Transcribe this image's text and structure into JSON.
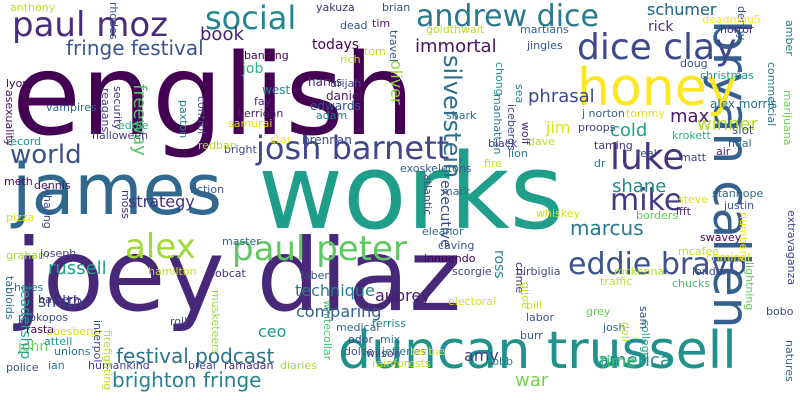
{
  "words": [
    {
      "text": "english",
      "color": "#440154"
    },
    {
      "text": "works",
      "color": "#1f9e89"
    },
    {
      "text": "joey diaz",
      "color": "#482878"
    },
    {
      "text": "james",
      "color": "#31688e"
    },
    {
      "text": "duncan trussell",
      "color": "#21918c"
    },
    {
      "text": "bryan callen",
      "color": "#355f8d"
    },
    {
      "text": "honey",
      "color": "#fde725"
    },
    {
      "text": "paul moz",
      "color": "#472d7b"
    },
    {
      "text": "dice clay",
      "color": "#3e4989"
    },
    {
      "text": "josh barnett",
      "color": "#404688"
    },
    {
      "text": "andrew dice",
      "color": "#2a788e"
    },
    {
      "text": "social",
      "color": "#25858e"
    },
    {
      "text": "paul peter",
      "color": "#5ec962"
    },
    {
      "text": "alex",
      "color": "#a0da39"
    },
    {
      "text": "eddie bravo",
      "color": "#3b528b"
    },
    {
      "text": "luke",
      "color": "#46337e"
    },
    {
      "text": "mike",
      "color": "#443983"
    },
    {
      "text": "world",
      "color": "#3b528b"
    },
    {
      "text": "brighton fringe",
      "color": "#26828e"
    },
    {
      "text": "festival podcast",
      "color": "#2c728e"
    },
    {
      "text": "fringe festival",
      "color": "#39568c"
    },
    {
      "text": "marcus",
      "color": "#2a788e"
    },
    {
      "text": "shane",
      "color": "#23898e"
    },
    {
      "text": "max",
      "color": "#48186a"
    },
    {
      "text": "cold",
      "color": "#20a486"
    },
    {
      "text": "book",
      "color": "#482173"
    },
    {
      "text": "silverstein",
      "color": "#2d708e"
    },
    {
      "text": "russell",
      "color": "#1fa088"
    },
    {
      "text": "technique",
      "color": "#287c8e"
    },
    {
      "text": "comparing",
      "color": "#365d8d"
    },
    {
      "text": "strategy",
      "color": "#472f7d"
    },
    {
      "text": "smith",
      "color": "#3f4788"
    },
    {
      "text": "ceo",
      "color": "#1f968b"
    },
    {
      "text": "america",
      "color": "#228c8d"
    },
    {
      "text": "time",
      "color": "#38b977"
    },
    {
      "text": "war",
      "color": "#7ad151"
    },
    {
      "text": "amy",
      "color": "#433e85"
    },
    {
      "text": "immortal",
      "color": "#471365"
    },
    {
      "text": "phrasal",
      "color": "#3f4889"
    },
    {
      "text": "aubrey",
      "color": "#481f70"
    },
    {
      "text": "todays",
      "color": "#450457"
    },
    {
      "text": "rick",
      "color": "#46307e"
    },
    {
      "text": "schumer",
      "color": "#2d708e"
    },
    {
      "text": "winner",
      "color": "#b5de2b"
    },
    {
      "text": "freeway",
      "color": "#52c569"
    },
    {
      "text": "oliver",
      "color": "#8fd744"
    },
    {
      "text": "ross",
      "color": "#27808e"
    },
    {
      "text": "jim",
      "color": "#d8e219"
    },
    {
      "text": "executive",
      "color": "#3e4a89"
    },
    {
      "text": "john",
      "color": "#6ccd5a"
    },
    {
      "text": "leadership",
      "color": "#20a386"
    },
    {
      "text": "job",
      "color": "#2db27d"
    },
    {
      "text": "harris",
      "color": "#472a7a"
    },
    {
      "text": "edwards",
      "color": "#3b528b"
    },
    {
      "text": "daniel",
      "color": "#481b6d"
    },
    {
      "text": "west",
      "color": "#25848e"
    },
    {
      "text": "brennan",
      "color": "#3e4c8a"
    },
    {
      "text": "dennis",
      "color": "#471063"
    },
    {
      "text": "vampires",
      "color": "#33638d"
    },
    {
      "text": "lyon",
      "color": "#46085c"
    },
    {
      "text": "banning",
      "color": "#440154"
    },
    {
      "text": "fay",
      "color": "#472c7a"
    },
    {
      "text": "alex morris",
      "color": "#2c728e"
    },
    {
      "text": "christmas",
      "color": "#1e9b8a"
    },
    {
      "text": "slot",
      "color": "#3a538b"
    },
    {
      "text": "neal",
      "color": "#31678e"
    },
    {
      "text": "krokett",
      "color": "#29af7f"
    },
    {
      "text": "proops",
      "color": "#414487"
    },
    {
      "text": "j norton",
      "color": "#375a8c"
    },
    {
      "text": "stanhope",
      "color": "#31688e"
    },
    {
      "text": "justin",
      "color": "#39558c"
    },
    {
      "text": "steve",
      "color": "#dde318"
    },
    {
      "text": "ifft",
      "color": "#482374"
    },
    {
      "text": "matt",
      "color": "#3d4e8a"
    },
    {
      "text": "london",
      "color": "#3c508b"
    },
    {
      "text": "mcafee",
      "color": "#c2df23"
    },
    {
      "text": "borders",
      "color": "#5cc863"
    },
    {
      "text": "criminal",
      "color": "#e5e419"
    },
    {
      "text": "bobo",
      "color": "#3f4788"
    },
    {
      "text": "ian",
      "color": "#2e6f8e"
    },
    {
      "text": "police",
      "color": "#3b528b"
    },
    {
      "text": "humankind",
      "color": "#433e85"
    },
    {
      "text": "breal",
      "color": "#3e4c8a"
    },
    {
      "text": "ramadan",
      "color": "#46307e"
    },
    {
      "text": "diaries",
      "color": "#a8db34"
    },
    {
      "text": "wilson",
      "color": "#424086"
    },
    {
      "text": "robb",
      "color": "#26828e"
    },
    {
      "text": "burr",
      "color": "#38598c"
    },
    {
      "text": "bill",
      "color": "#d2e21b"
    },
    {
      "text": "labor",
      "color": "#3b528b"
    },
    {
      "text": "josh",
      "color": "#2e6e8e"
    },
    {
      "text": "grey",
      "color": "#69cd5b"
    },
    {
      "text": "crime",
      "color": "#482878"
    },
    {
      "text": "doll",
      "color": "#c8e020"
    },
    {
      "text": "college",
      "color": "#21a685"
    },
    {
      "text": "traffic",
      "color": "#c0df25"
    },
    {
      "text": "lightning",
      "color": "#65cb5e"
    },
    {
      "text": "numbers",
      "color": "#fde725"
    },
    {
      "text": "extravaganza",
      "color": "#3f4788"
    },
    {
      "text": "natures",
      "color": "#31678e"
    },
    {
      "text": "commercial",
      "color": "#2a788e"
    },
    {
      "text": "marijuana",
      "color": "#6ece58"
    },
    {
      "text": "air",
      "color": "#481c6e"
    },
    {
      "text": "tommy",
      "color": "#e2e418"
    },
    {
      "text": "taming",
      "color": "#46337e"
    },
    {
      "text": "real",
      "color": "#3b528b"
    },
    {
      "text": "dr",
      "color": "#277f8e"
    },
    {
      "text": "lion",
      "color": "#2c738e"
    },
    {
      "text": "black",
      "color": "#433e85"
    },
    {
      "text": "dave",
      "color": "#b8de29"
    },
    {
      "text": "fire",
      "color": "#c5e021"
    },
    {
      "text": "shark",
      "color": "#2d708e"
    },
    {
      "text": "whiskey",
      "color": "#d5e21a"
    },
    {
      "text": "caving",
      "color": "#3b528b"
    },
    {
      "text": "innuendo",
      "color": "#440154"
    },
    {
      "text": "eleanor",
      "color": "#31688e"
    },
    {
      "text": "scorgie",
      "color": "#404688"
    },
    {
      "text": "birbiglia",
      "color": "#414487"
    },
    {
      "text": "mckenna",
      "color": "#b5de2b"
    },
    {
      "text": "chucks",
      "color": "#4ac16d"
    },
    {
      "text": "electoral",
      "color": "#d0e11c"
    },
    {
      "text": "mark",
      "color": "#2e6e8e"
    },
    {
      "text": "exoskeletons",
      "color": "#355f8d"
    },
    {
      "text": "atlantic",
      "color": "#3b528b"
    },
    {
      "text": "rich",
      "color": "#bddf26"
    },
    {
      "text": "tim",
      "color": "#471365"
    },
    {
      "text": "dead",
      "color": "#3b528b"
    },
    {
      "text": "brian",
      "color": "#3e4c8a"
    },
    {
      "text": "yakuza",
      "color": "#46307e"
    },
    {
      "text": "goldthwait",
      "color": "#b8de29"
    },
    {
      "text": "martians",
      "color": "#31688e"
    },
    {
      "text": "jingles",
      "color": "#3b528b"
    },
    {
      "text": "chong",
      "color": "#1f978b"
    },
    {
      "text": "manhattan",
      "color": "#2a788e"
    },
    {
      "text": "sea",
      "color": "#25838e"
    },
    {
      "text": "icebergs",
      "color": "#3e4989"
    },
    {
      "text": "wolf",
      "color": "#482475"
    },
    {
      "text": "travel",
      "color": "#39558c"
    },
    {
      "text": "tom",
      "color": "#bddf26"
    },
    {
      "text": "urijah",
      "color": "#3b528b"
    },
    {
      "text": "adam",
      "color": "#2a788e"
    },
    {
      "text": "kerrigan",
      "color": "#481b6d"
    },
    {
      "text": "bright",
      "color": "#3e4a89"
    },
    {
      "text": "star",
      "color": "#fde725"
    },
    {
      "text": "redban",
      "color": "#b8de29"
    },
    {
      "text": "samurai",
      "color": "#dde318"
    },
    {
      "text": "paxton",
      "color": "#26828e"
    },
    {
      "text": "control",
      "color": "#3e4c8a"
    },
    {
      "text": "security",
      "color": "#472d7b"
    },
    {
      "text": "reagans",
      "color": "#3f4788"
    },
    {
      "text": "rhodes",
      "color": "#3b528b"
    },
    {
      "text": "anthony",
      "color": "#c2df23"
    },
    {
      "text": "record",
      "color": "#21918c"
    },
    {
      "text": "asexuality",
      "color": "#471365"
    },
    {
      "text": "eddie",
      "color": "#29af7f"
    },
    {
      "text": "halloween",
      "color": "#433e85"
    },
    {
      "text": "whaling",
      "color": "#3e4c8a"
    },
    {
      "text": "pizza",
      "color": "#dde318"
    },
    {
      "text": "meth",
      "color": "#46085c"
    },
    {
      "text": "fiction",
      "color": "#3b528b"
    },
    {
      "text": "moss",
      "color": "#472a7a"
    },
    {
      "text": "master",
      "color": "#31688e"
    },
    {
      "text": "graham",
      "color": "#a8db34"
    },
    {
      "text": "joseph",
      "color": "#433e85"
    },
    {
      "text": "holes",
      "color": "#2a788e"
    },
    {
      "text": "tabloids",
      "color": "#2e6e8e"
    },
    {
      "text": "halpern",
      "color": "#472d7b"
    },
    {
      "text": "prokopos",
      "color": "#3e4c8a"
    },
    {
      "text": "rasta",
      "color": "#440154"
    },
    {
      "text": "attell",
      "color": "#21918c"
    },
    {
      "text": "duesberg",
      "color": "#d0e11c"
    },
    {
      "text": "unions",
      "color": "#2a788e"
    },
    {
      "text": "interpol",
      "color": "#3b528b"
    },
    {
      "text": "hamilton",
      "color": "#c5e021"
    },
    {
      "text": "bobcat",
      "color": "#46307e"
    },
    {
      "text": "musketeers",
      "color": "#a0da39"
    },
    {
      "text": "firefighting",
      "color": "#b5de2b"
    },
    {
      "text": "roll",
      "color": "#3b528b"
    },
    {
      "text": "medical",
      "color": "#31688e"
    },
    {
      "text": "odor",
      "color": "#3e4989"
    },
    {
      "text": "mix",
      "color": "#2a788e"
    },
    {
      "text": "ferriss",
      "color": "#26828e"
    },
    {
      "text": "dolce",
      "color": "#3b528b"
    },
    {
      "text": "jefferies",
      "color": "#2a788e"
    },
    {
      "text": "barbie",
      "color": "#e2e418"
    },
    {
      "text": "rainforests",
      "color": "#c8e020"
    },
    {
      "text": "whitecollar",
      "color": "#4ac16d"
    },
    {
      "text": "faber",
      "color": "#3b528b"
    },
    {
      "text": "gijoe",
      "color": "#b8de29"
    },
    {
      "text": "sam",
      "color": "#3e4c8a"
    },
    {
      "text": "schumer",
      "color": "#2d708e"
    },
    {
      "text": "denny",
      "color": "#3b528b"
    },
    {
      "text": "deadmau5",
      "color": "#fde725"
    },
    {
      "text": "horror",
      "color": "#46307e"
    },
    {
      "text": "amber",
      "color": "#2a788e"
    },
    {
      "text": "doug",
      "color": "#3b528b"
    },
    {
      "text": "swavey",
      "color": "#440154"
    }
  ]
}
